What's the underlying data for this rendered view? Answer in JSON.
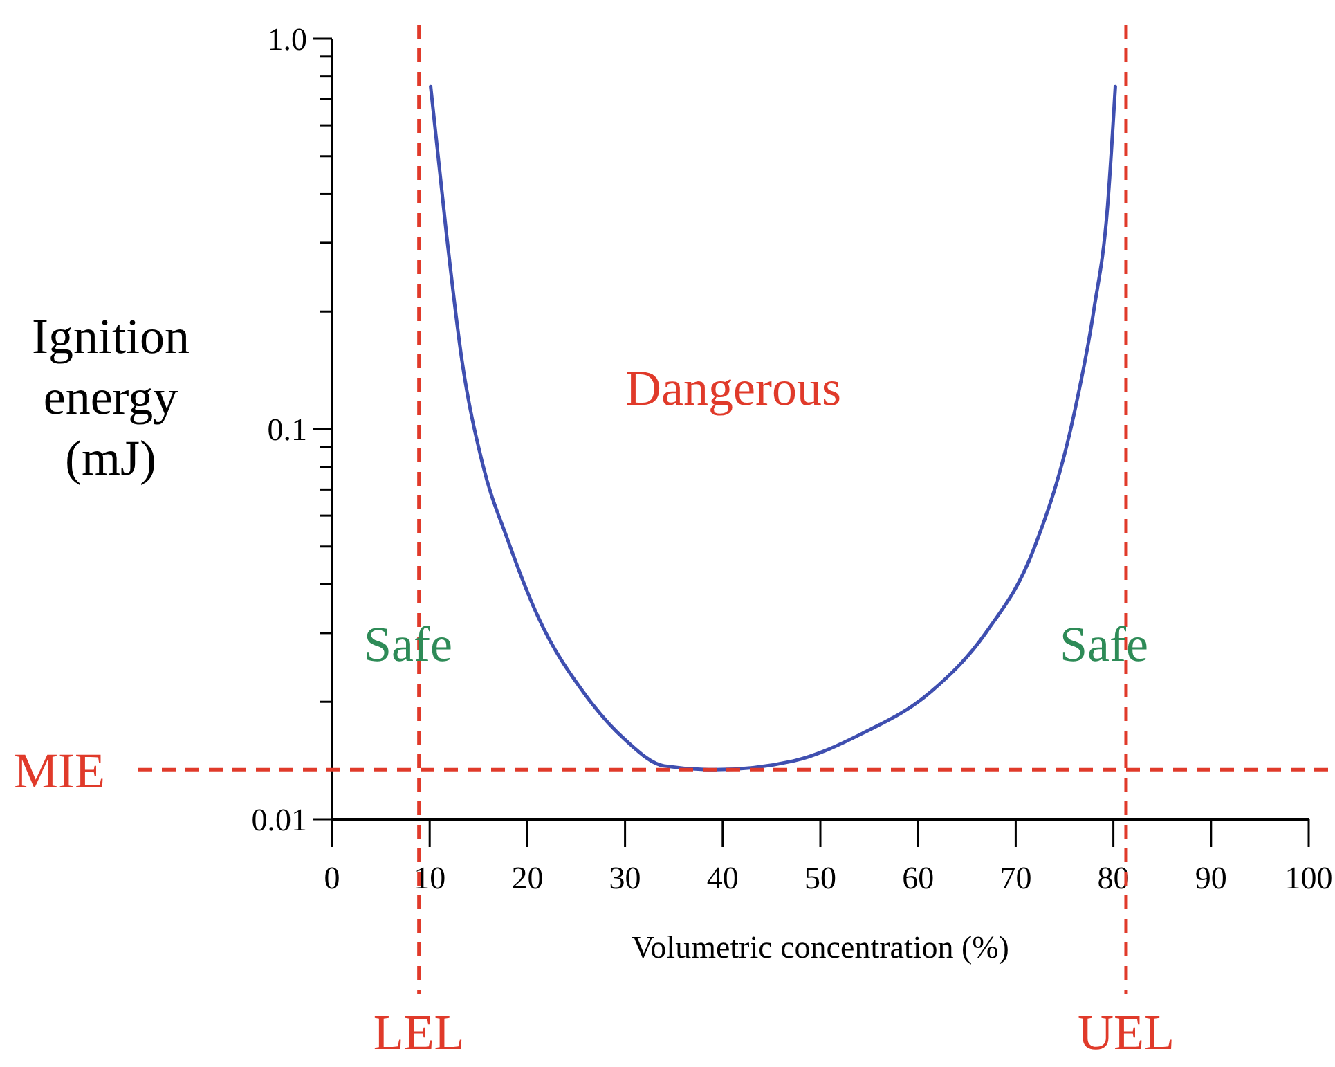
{
  "chart_data": {
    "type": "line",
    "xlabel": "Volumetric concentration (%)",
    "ylabel": "Ignition energy (mJ)",
    "log": "y",
    "xlim": [
      0,
      100
    ],
    "xticks": [
      0,
      10,
      20,
      30,
      40,
      50,
      60,
      70,
      80,
      90,
      100
    ],
    "ylim": [
      0.01,
      1
    ],
    "yticks": [
      {
        "value": 0.01,
        "label": "0.01"
      },
      {
        "value": 0.02,
        "label": null
      },
      {
        "value": 0.03,
        "label": null
      },
      {
        "value": 0.04,
        "label": null
      },
      {
        "value": 0.05,
        "label": null
      },
      {
        "value": 0.06,
        "label": null
      },
      {
        "value": 0.07,
        "label": null
      },
      {
        "value": 0.08,
        "label": null
      },
      {
        "value": 0.09,
        "label": null
      },
      {
        "value": 0.1,
        "label": "0.1"
      },
      {
        "value": 0.2,
        "label": null
      },
      {
        "value": 0.3,
        "label": null
      },
      {
        "value": 0.4,
        "label": null
      },
      {
        "value": 0.5,
        "label": null
      },
      {
        "value": 0.6,
        "label": null
      },
      {
        "value": 0.7,
        "label": null
      },
      {
        "value": 0.8,
        "label": null
      },
      {
        "value": 0.9,
        "label": null
      },
      {
        "value": 1,
        "label": "1.0"
      }
    ],
    "grid": false,
    "marker": "none",
    "line_style": "solid",
    "series": [
      {
        "color": "#3f4fb0",
        "x": [
          10.1,
          11.7,
          13.3,
          15.4,
          18.0,
          21.1,
          25.9,
          30.0,
          34.0,
          39.2,
          47.2,
          54.3,
          61.3,
          67.0,
          71.8,
          76.0,
          78.0,
          79.4,
          80.2
        ],
        "values": [
          0.754,
          0.319,
          0.15,
          0.0817,
          0.0519,
          0.033,
          0.0209,
          0.016,
          0.0137,
          0.0134,
          0.0141,
          0.0166,
          0.0212,
          0.0302,
          0.0489,
          0.11,
          0.202,
          0.371,
          0.754
        ]
      }
    ],
    "ref_lines": [
      {
        "axis": "x",
        "value": 8.9,
        "label": "LEL",
        "color": "#e03a2a",
        "line_style": "dashed"
      },
      {
        "axis": "x",
        "value": 81.3,
        "label": "UEL",
        "color": "#e03a2a",
        "line_style": "dashed"
      },
      {
        "axis": "y",
        "value": 0.0134,
        "label": "MIE",
        "color": "#e03a2a",
        "line_style": "dashed"
      }
    ],
    "annotations": [
      "Dangerous",
      "Safe",
      "Safe"
    ]
  }
}
